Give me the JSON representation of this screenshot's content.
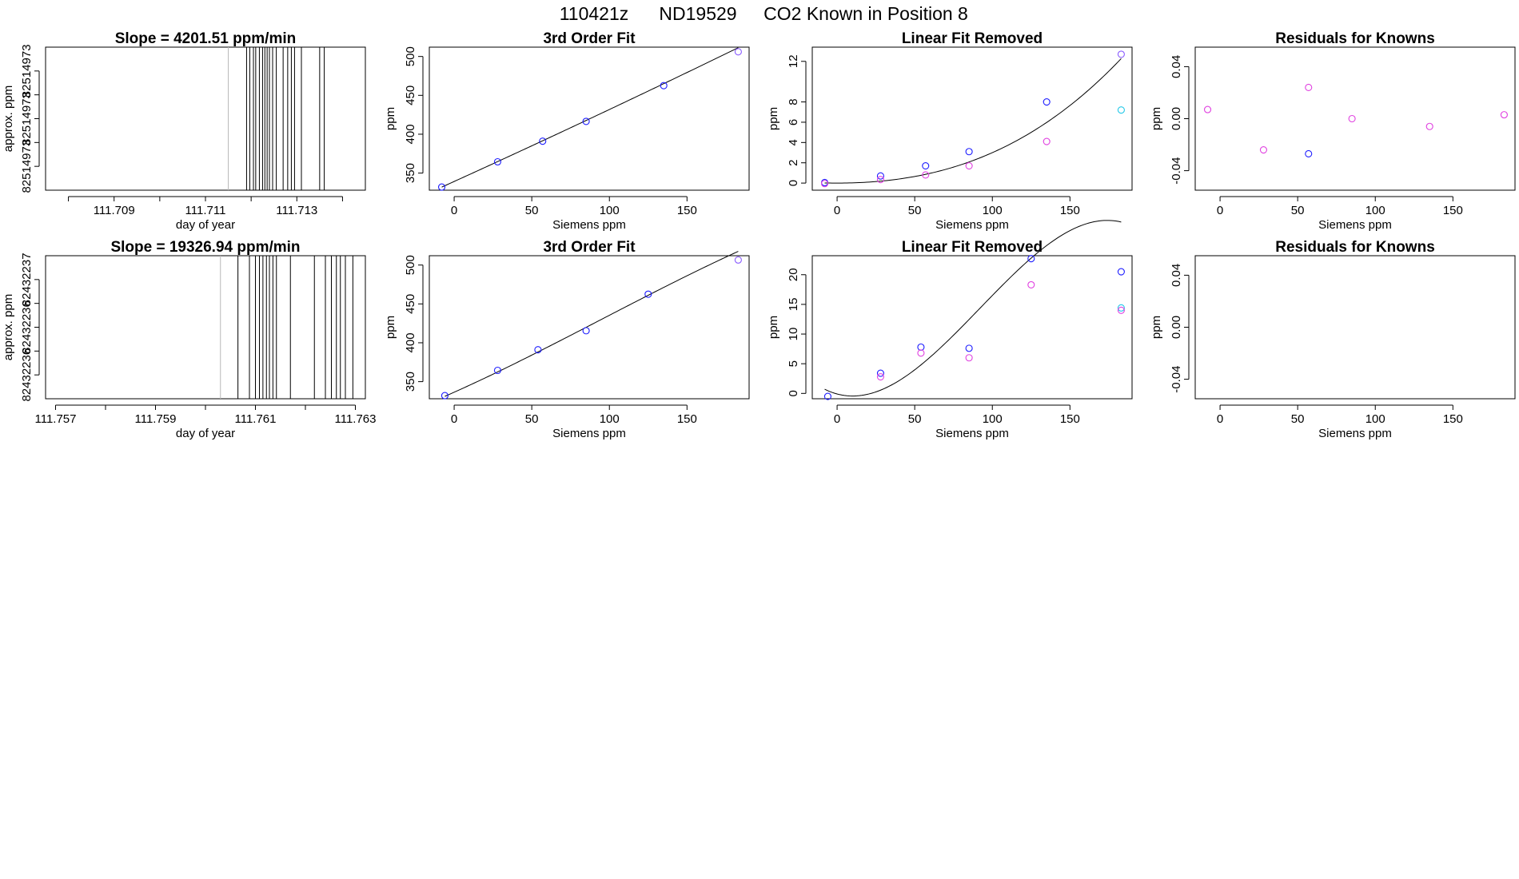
{
  "figure": {
    "suptitle_parts": [
      "110421z",
      "ND19529",
      "CO2 Known in Position  8"
    ]
  },
  "chart_data": [
    {
      "id": "row1-timeseries",
      "type": "timeseries-vlines",
      "title": "Slope =  4201.51  ppm/min",
      "xlabel": "day of year",
      "ylabel": "approx. ppm",
      "xlim": [
        111.7075,
        111.7145
      ],
      "xticks": [
        111.708,
        111.709,
        111.71,
        111.711,
        111.712,
        111.713,
        111.714
      ],
      "xtick_labels": [
        "",
        "111.709",
        "",
        "111.711",
        "",
        "111.713",
        ""
      ],
      "ylim": [
        0,
        6
      ],
      "yticks": [
        1,
        2,
        3,
        4,
        5
      ],
      "ytick_labels": [
        "82514973",
        "",
        "82514973",
        "",
        "82514973"
      ],
      "lines_gray": [
        111.7115
      ],
      "lines_black": [
        111.7119,
        111.71197,
        111.71205,
        111.7121,
        111.71218,
        111.71225,
        111.7123,
        111.71235,
        111.7124,
        111.71247,
        111.71255,
        111.7127,
        111.7128,
        111.71288,
        111.71295,
        111.7131,
        111.7135,
        111.7136
      ]
    },
    {
      "id": "row1-fit",
      "type": "scatter+line",
      "title": "3rd Order Fit",
      "xlabel": "Siemens ppm",
      "ylabel": "ppm",
      "xlim": [
        -16,
        190
      ],
      "ylim": [
        328,
        512
      ],
      "xticks": [
        0,
        50,
        100,
        150
      ],
      "xtick_labels": [
        "0",
        "50",
        "100",
        "150"
      ],
      "yticks": [
        350,
        400,
        450,
        500
      ],
      "ytick_labels": [
        "350",
        "400",
        "450",
        "500"
      ],
      "curve": {
        "x0": -8,
        "x1": 183,
        "coef": [
          339.2,
          0.9085,
          0.000174,
          0.0
        ],
        "color": "#000000"
      },
      "points": [
        {
          "x": -8,
          "y": 332,
          "color": "#1c1cff"
        },
        {
          "x": 28,
          "y": 364.5,
          "color": "#1c1cff"
        },
        {
          "x": 57,
          "y": 391,
          "color": "#1c1cff"
        },
        {
          "x": 85,
          "y": 416.5,
          "color": "#1c1cff"
        },
        {
          "x": 135,
          "y": 462.5,
          "color": "#1c1cff"
        },
        {
          "x": 183,
          "y": 506,
          "color": "#8a5cff"
        }
      ]
    },
    {
      "id": "row1-linfit",
      "type": "scatter+line",
      "title": "Linear Fit Removed",
      "xlabel": "Siemens ppm",
      "ylabel": "ppm",
      "xlim": [
        -16,
        190
      ],
      "ylim": [
        -0.7,
        13.4
      ],
      "xticks": [
        0,
        50,
        100,
        150
      ],
      "xtick_labels": [
        "0",
        "50",
        "100",
        "150"
      ],
      "yticks": [
        0,
        2,
        4,
        6,
        8,
        12
      ],
      "ytick_labels": [
        "0",
        "2",
        "4",
        "6",
        "8",
        "12"
      ],
      "curve": {
        "x0": -8,
        "x1": 183,
        "coef": [
          0.0,
          0.0,
          0.00022,
          8e-07
        ],
        "color": "#000000"
      },
      "points": [
        {
          "x": -8,
          "y": 0.05,
          "color": "#1c1cff"
        },
        {
          "x": -8,
          "y": -0.05,
          "color": "#e040e0"
        },
        {
          "x": 28,
          "y": 0.7,
          "color": "#1c1cff"
        },
        {
          "x": 28,
          "y": 0.35,
          "color": "#e040e0"
        },
        {
          "x": 57,
          "y": 1.7,
          "color": "#1c1cff"
        },
        {
          "x": 57,
          "y": 0.8,
          "color": "#e040e0"
        },
        {
          "x": 85,
          "y": 3.1,
          "color": "#1c1cff"
        },
        {
          "x": 85,
          "y": 1.7,
          "color": "#e040e0"
        },
        {
          "x": 135,
          "y": 8.0,
          "color": "#1c1cff"
        },
        {
          "x": 135,
          "y": 4.1,
          "color": "#e040e0"
        },
        {
          "x": 183,
          "y": 12.7,
          "color": "#8a5cff"
        },
        {
          "x": 183,
          "y": 7.2,
          "color": "#22c8e8"
        }
      ]
    },
    {
      "id": "row1-resid",
      "type": "scatter",
      "title": "Residuals for Knowns",
      "xlabel": "Siemens ppm",
      "ylabel": "ppm",
      "xlim": [
        -16,
        190
      ],
      "ylim": [
        -0.055,
        0.055
      ],
      "xticks": [
        0,
        50,
        100,
        150
      ],
      "xtick_labels": [
        "0",
        "50",
        "100",
        "150"
      ],
      "yticks": [
        -0.04,
        0.0,
        0.04
      ],
      "ytick_labels": [
        "-0.04",
        "0.00",
        "0.04"
      ],
      "points": [
        {
          "x": -8,
          "y": 0.007,
          "color": "#e040e0"
        },
        {
          "x": 28,
          "y": -0.024,
          "color": "#e040e0"
        },
        {
          "x": 57,
          "y": 0.024,
          "color": "#e040e0"
        },
        {
          "x": 57,
          "y": -0.027,
          "color": "#1c1cff"
        },
        {
          "x": 85,
          "y": 0.0,
          "color": "#e040e0"
        },
        {
          "x": 135,
          "y": -0.006,
          "color": "#e040e0"
        },
        {
          "x": 183,
          "y": 0.003,
          "color": "#e040e0"
        }
      ]
    },
    {
      "id": "row2-timeseries",
      "type": "timeseries-vlines",
      "title": "Slope =  19326.94  ppm/min",
      "xlabel": "day of year",
      "ylabel": "approx. ppm",
      "xlim": [
        111.7568,
        111.7632
      ],
      "xticks": [
        111.757,
        111.758,
        111.759,
        111.76,
        111.761,
        111.762,
        111.763
      ],
      "xtick_labels": [
        "111.757",
        "",
        "111.759",
        "",
        "111.761",
        "",
        "111.763"
      ],
      "ylim": [
        0,
        6
      ],
      "yticks": [
        1,
        2,
        3,
        4,
        5
      ],
      "ytick_labels": [
        "82432236",
        "",
        "82432236",
        "",
        "82432237"
      ],
      "lines_gray": [
        111.7603
      ],
      "lines_black": [
        111.76065,
        111.76088,
        111.761,
        111.76108,
        111.76115,
        111.76122,
        111.76128,
        111.76135,
        111.76142,
        111.7617,
        111.76218,
        111.7624,
        111.76252,
        111.76262,
        111.7627,
        111.7628,
        111.76295
      ]
    },
    {
      "id": "row2-fit",
      "type": "scatter+line",
      "title": "3rd Order Fit",
      "xlabel": "Siemens ppm",
      "ylabel": "ppm",
      "xlim": [
        -16,
        190
      ],
      "ylim": [
        328,
        512
      ],
      "xticks": [
        0,
        50,
        100,
        150
      ],
      "xtick_labels": [
        "0",
        "50",
        "100",
        "150"
      ],
      "yticks": [
        350,
        400,
        450,
        500
      ],
      "ytick_labels": [
        "350",
        "400",
        "450",
        "500"
      ],
      "curve": {
        "x0": -6,
        "x1": 183,
        "coef": [
          336.4,
          0.8932,
          0.00149,
          -5.25e-06
        ],
        "color": "#000000"
      },
      "points": [
        {
          "x": -6,
          "y": 332,
          "color": "#1c1cff"
        },
        {
          "x": 28,
          "y": 364.5,
          "color": "#1c1cff"
        },
        {
          "x": 54,
          "y": 391,
          "color": "#1c1cff"
        },
        {
          "x": 85,
          "y": 415.5,
          "color": "#1c1cff"
        },
        {
          "x": 125,
          "y": 462.5,
          "color": "#1c1cff"
        },
        {
          "x": 183,
          "y": 506.5,
          "color": "#8a5cff"
        }
      ]
    },
    {
      "id": "row2-linfit",
      "type": "scatter+line",
      "title": "Linear Fit Removed",
      "xlabel": "Siemens ppm",
      "ylabel": "ppm",
      "xlim": [
        -16,
        190
      ],
      "ylim": [
        -0.9,
        23.2
      ],
      "xticks": [
        0,
        50,
        100,
        150
      ],
      "xtick_labels": [
        "0",
        "50",
        "100",
        "150"
      ],
      "yticks": [
        0,
        5,
        10,
        15,
        20
      ],
      "ytick_labels": [
        "0",
        "5",
        "10",
        "15",
        "20"
      ],
      "curve": {
        "x0": -8,
        "x1": 183,
        "coef": [
          -0.1,
          -0.07,
          0.0037,
          -1.34e-05
        ],
        "color": "#000000"
      },
      "points": [
        {
          "x": -6,
          "y": -0.5,
          "color": "#1c1cff"
        },
        {
          "x": 28,
          "y": 3.4,
          "color": "#1c1cff"
        },
        {
          "x": 28,
          "y": 2.8,
          "color": "#e040e0"
        },
        {
          "x": 54,
          "y": 7.8,
          "color": "#1c1cff"
        },
        {
          "x": 54,
          "y": 6.8,
          "color": "#e040e0"
        },
        {
          "x": 85,
          "y": 7.6,
          "color": "#1c1cff"
        },
        {
          "x": 85,
          "y": 6.0,
          "color": "#e040e0"
        },
        {
          "x": 125,
          "y": 22.7,
          "color": "#1c1cff"
        },
        {
          "x": 125,
          "y": 18.3,
          "color": "#e040e0"
        },
        {
          "x": 183,
          "y": 20.5,
          "color": "#1c1cff"
        },
        {
          "x": 183,
          "y": 14.4,
          "color": "#22c8e8"
        },
        {
          "x": 183,
          "y": 14.0,
          "color": "#e040e0"
        }
      ]
    },
    {
      "id": "row2-resid",
      "type": "scatter",
      "title": "Residuals for Knowns",
      "xlabel": "Siemens ppm",
      "ylabel": "ppm",
      "xlim": [
        -16,
        190
      ],
      "ylim": [
        -0.055,
        0.055
      ],
      "xticks": [
        0,
        50,
        100,
        150
      ],
      "xtick_labels": [
        "0",
        "50",
        "100",
        "150"
      ],
      "yticks": [
        -0.04,
        0.0,
        0.04
      ],
      "ytick_labels": [
        "-0.04",
        "0.00",
        "0.04"
      ],
      "points": []
    }
  ]
}
